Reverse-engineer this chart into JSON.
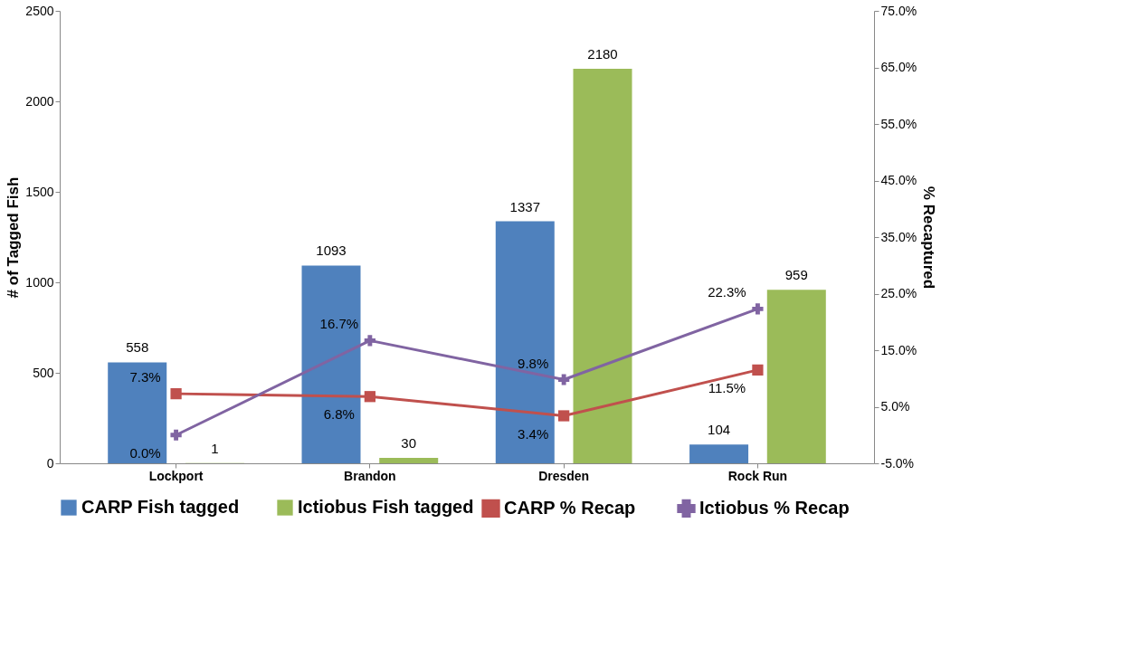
{
  "chart_data": {
    "type": "bar",
    "categories": [
      "Lockport",
      "Brandon",
      "Dresden",
      "Rock Run"
    ],
    "ylabel": "# of Tagged Fish",
    "y2label": "% Recaptured",
    "ylim": [
      0,
      2500
    ],
    "yticks": [
      0,
      500,
      1000,
      1500,
      2000,
      2500
    ],
    "y2lim": [
      -5,
      75
    ],
    "y2ticks": [
      {
        "value": -5,
        "label": "-5.0%"
      },
      {
        "value": 5,
        "label": "5.0%"
      },
      {
        "value": 15,
        "label": "15.0%"
      },
      {
        "value": 25,
        "label": "25.0%"
      },
      {
        "value": 35,
        "label": "35.0%"
      },
      {
        "value": 45,
        "label": "45.0%"
      },
      {
        "value": 55,
        "label": "55.0%"
      },
      {
        "value": 65,
        "label": "65.0%"
      },
      {
        "value": 75,
        "label": "75.0%"
      }
    ],
    "series": [
      {
        "name": "CARP Fish tagged",
        "type": "bar",
        "color": "#4f81bd",
        "values": [
          558,
          1093,
          1337,
          104
        ]
      },
      {
        "name": "Ictiobus Fish tagged",
        "type": "bar",
        "color": "#9bbb59",
        "values": [
          1,
          30,
          2180,
          959
        ]
      },
      {
        "name": "CARP % Recap",
        "type": "line",
        "axis": "y2",
        "color": "#c0504d",
        "marker": "square",
        "values": [
          7.3,
          6.8,
          3.4,
          11.5
        ],
        "value_labels": [
          "7.3%",
          "6.8%",
          "3.4%",
          "11.5%"
        ]
      },
      {
        "name": "Ictiobus % Recap",
        "type": "line",
        "axis": "y2",
        "color": "#8064a2",
        "marker": "cross",
        "values": [
          0.0,
          16.7,
          9.8,
          22.3
        ],
        "value_labels": [
          "0.0%",
          "16.7%",
          "9.8%",
          "22.3%"
        ]
      }
    ],
    "data_labels": true,
    "grid": false,
    "legend": "bottom"
  }
}
